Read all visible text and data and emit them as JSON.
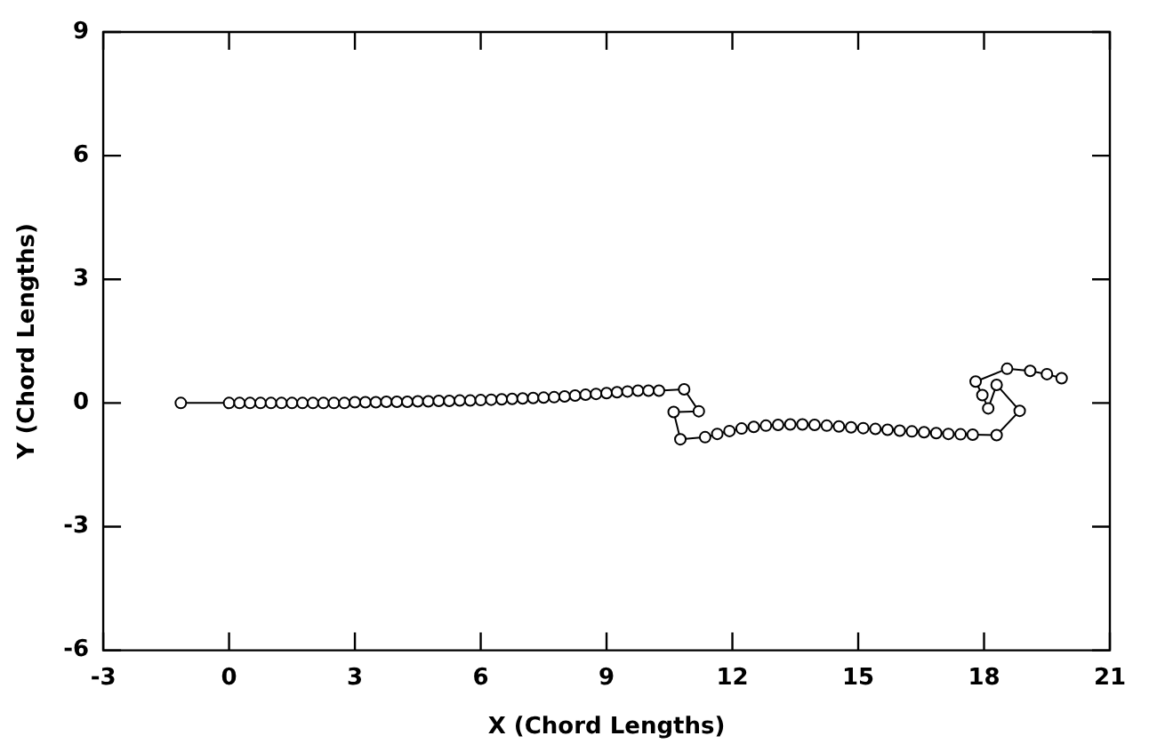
{
  "chart_data": {
    "type": "line",
    "xlabel": "X (Chord Lengths)",
    "ylabel": "Y (Chord Lengths)",
    "xlim": [
      -3,
      21
    ],
    "xticks": [
      -3,
      0,
      3,
      6,
      9,
      12,
      15,
      18,
      21
    ],
    "ylim": [
      -6,
      9
    ],
    "yticks": [
      -6,
      -3,
      0,
      3,
      6,
      9
    ],
    "grid": false,
    "legend": false,
    "marker": "circle",
    "line_style": "solid",
    "series": [
      {
        "color": "#000000",
        "x": [
          -1.15,
          0,
          0.25,
          0.5,
          0.75,
          1,
          1.25,
          1.5,
          1.75,
          2,
          2.25,
          2.5,
          2.75,
          3,
          3.25,
          3.5,
          3.75,
          4,
          4.25,
          4.5,
          4.75,
          5,
          5.25,
          5.5,
          5.75,
          6,
          6.25,
          6.5,
          6.75,
          7,
          7.25,
          7.5,
          7.75,
          8,
          8.25,
          8.5,
          8.75,
          9,
          9.25,
          9.5,
          9.75,
          10,
          10.25,
          10.85,
          11.2,
          10.6,
          10.76,
          11.35,
          11.64,
          11.93,
          12.22,
          12.51,
          12.8,
          13.09,
          13.38,
          13.67,
          13.96,
          14.25,
          14.54,
          14.83,
          15.12,
          15.41,
          15.7,
          15.99,
          16.28,
          16.57,
          16.86,
          17.15,
          17.44,
          17.73,
          18.3,
          18.85,
          18.3,
          18.1,
          17.96,
          17.8,
          18.55,
          19.1,
          19.5,
          19.85
        ],
        "values": [
          0,
          0,
          0,
          0,
          0,
          0,
          0,
          0,
          0,
          0,
          0,
          0,
          0,
          0.02,
          0.02,
          0.02,
          0.03,
          0.03,
          0.03,
          0.04,
          0.04,
          0.05,
          0.05,
          0.06,
          0.06,
          0.07,
          0.08,
          0.09,
          0.1,
          0.11,
          0.12,
          0.13,
          0.14,
          0.16,
          0.18,
          0.2,
          0.22,
          0.24,
          0.26,
          0.28,
          0.3,
          0.3,
          0.3,
          0.33,
          -0.2,
          -0.22,
          -0.88,
          -0.83,
          -0.75,
          -0.68,
          -0.62,
          -0.58,
          -0.55,
          -0.53,
          -0.52,
          -0.52,
          -0.53,
          -0.55,
          -0.57,
          -0.59,
          -0.61,
          -0.63,
          -0.65,
          -0.67,
          -0.69,
          -0.71,
          -0.73,
          -0.75,
          -0.76,
          -0.77,
          -0.78,
          -0.19,
          0.44,
          -0.13,
          0.19,
          0.52,
          0.83,
          0.78,
          0.7,
          0.6
        ]
      }
    ]
  }
}
